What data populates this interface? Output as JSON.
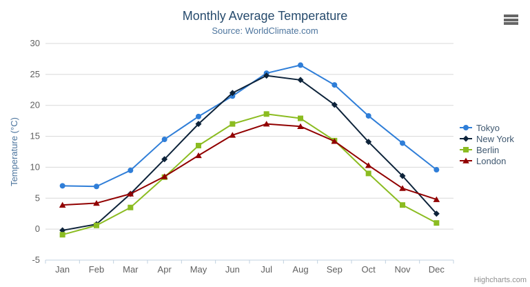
{
  "title": "Monthly Average Temperature",
  "subtitle": "Source: WorldClimate.com",
  "credits": "Highcharts.com",
  "context_menu": {
    "icon": "hamburger-icon",
    "color": "#666666"
  },
  "colors": {
    "background": "#ffffff",
    "title_text": "#274b6d",
    "subtitle_text": "#4d759e",
    "axis_label_text": "#606060",
    "axis_title_text": "#4d759e",
    "gridline": "#d8d8d8",
    "axis_line": "#c0d0e0",
    "legend_text": "#3e576f",
    "credits_text": "#909090"
  },
  "chart_data": {
    "type": "line",
    "title": "Monthly Average Temperature",
    "subtitle": "Source: WorldClimate.com",
    "categories": [
      "Jan",
      "Feb",
      "Mar",
      "Apr",
      "May",
      "Jun",
      "Jul",
      "Aug",
      "Sep",
      "Oct",
      "Nov",
      "Dec"
    ],
    "xlabel": "",
    "ylabel": "Temperature (°C)",
    "ylim": [
      -5,
      30
    ],
    "ytick_step": 5,
    "yticks": [
      -5,
      0,
      5,
      10,
      15,
      20,
      25,
      30
    ],
    "grid": true,
    "legend_position": "right",
    "series": [
      {
        "name": "Tokyo",
        "color": "#2f7ed8",
        "marker": "circle",
        "values": [
          7.0,
          6.9,
          9.5,
          14.5,
          18.2,
          21.5,
          25.2,
          26.5,
          23.3,
          18.3,
          13.9,
          9.6
        ]
      },
      {
        "name": "New York",
        "color": "#0d233a",
        "marker": "diamond",
        "values": [
          -0.2,
          0.8,
          5.7,
          11.3,
          17.0,
          22.0,
          24.8,
          24.1,
          20.1,
          14.1,
          8.6,
          2.5
        ]
      },
      {
        "name": "Berlin",
        "color": "#8bbc21",
        "marker": "square",
        "values": [
          -0.9,
          0.6,
          3.5,
          8.4,
          13.5,
          17.0,
          18.6,
          17.9,
          14.3,
          9.0,
          3.9,
          1.0
        ]
      },
      {
        "name": "London",
        "color": "#910000",
        "marker": "triangle",
        "values": [
          3.9,
          4.2,
          5.7,
          8.5,
          11.9,
          15.2,
          17.0,
          16.6,
          14.2,
          10.3,
          6.6,
          4.8
        ]
      }
    ]
  }
}
